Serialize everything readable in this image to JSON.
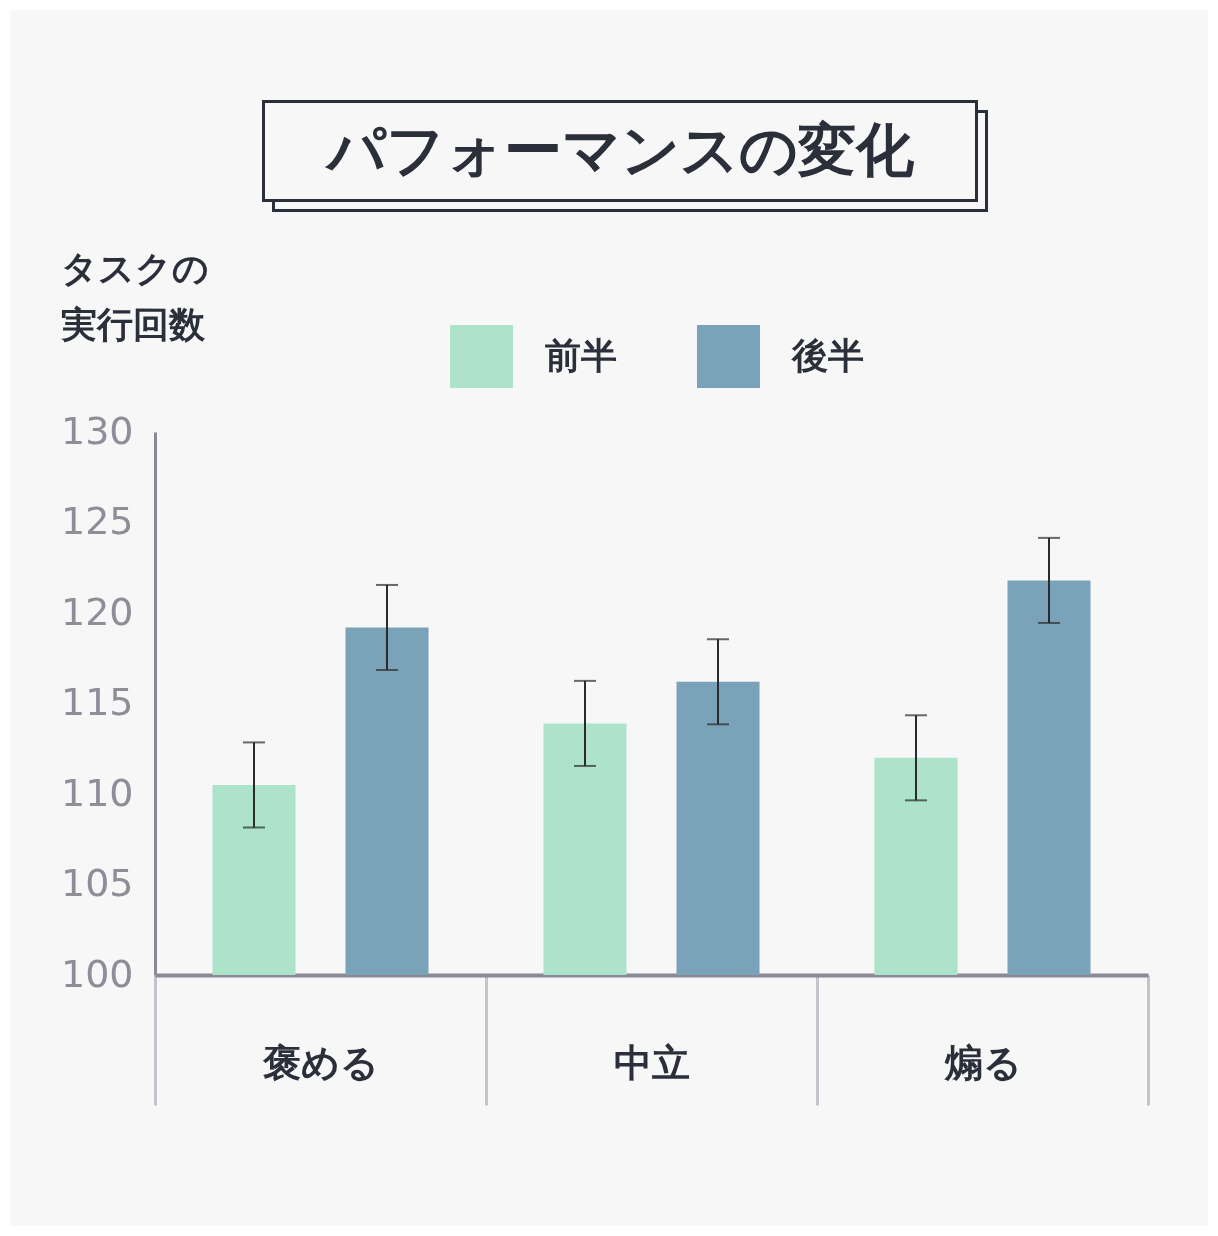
{
  "chart_data": {
    "type": "bar",
    "title": "パフォーマンスの変化",
    "ylabel": "タスクの実行回数",
    "categories": [
      "褒める",
      "中立",
      "煽る"
    ],
    "series": [
      {
        "name": "前半",
        "color": "#ade3cb",
        "values": [
          110.5,
          113.9,
          112.0
        ],
        "errors": [
          2.35,
          2.35,
          2.35
        ]
      },
      {
        "name": "後半",
        "color": "#7aa3b9",
        "values": [
          119.2,
          116.2,
          121.8
        ],
        "errors": [
          2.35,
          2.35,
          2.35
        ]
      }
    ],
    "ylim": [
      100,
      130
    ],
    "yticks": [
      100,
      105,
      110,
      115,
      120,
      125,
      130
    ],
    "grid": false,
    "legend": "top"
  }
}
